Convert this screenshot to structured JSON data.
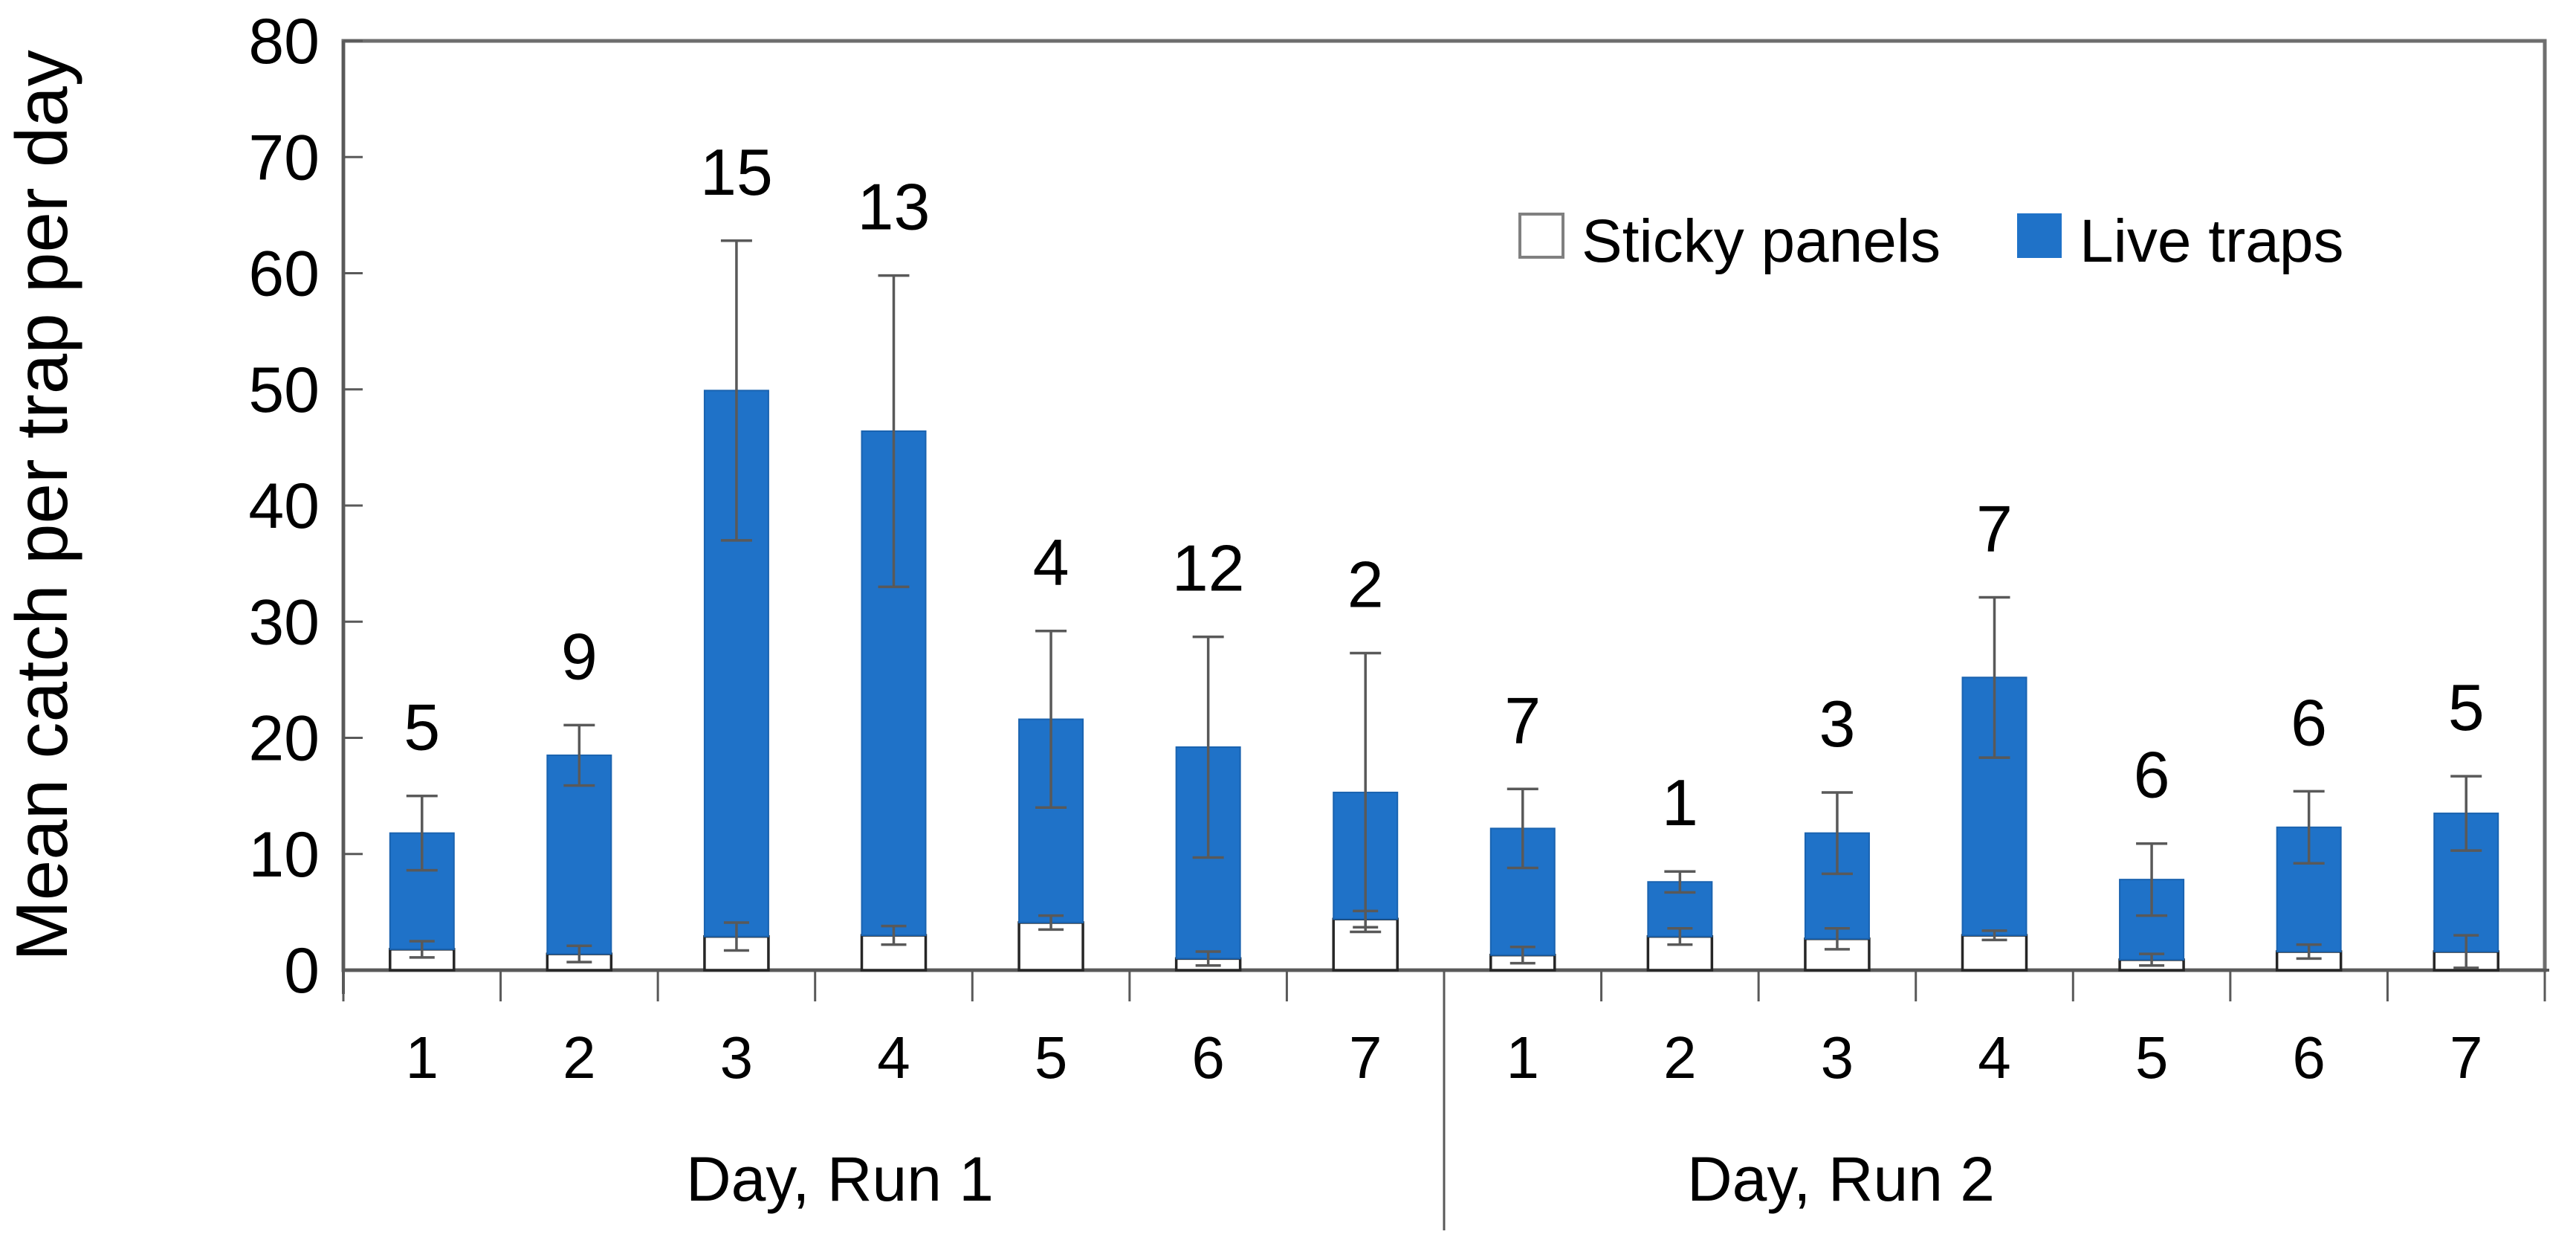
{
  "chart_data": {
    "type": "bar",
    "stacked": true,
    "title": "",
    "xlabel": "",
    "ylabel": "Mean catch per trap per day",
    "ylim": [
      0,
      80
    ],
    "yticks": [
      0,
      10,
      20,
      30,
      40,
      50,
      60,
      70,
      80
    ],
    "grid": false,
    "legend_position": "top-right",
    "legend": {
      "items": [
        {
          "label": "Sticky panels",
          "fill": "#FFFFFF",
          "border": "#808080"
        },
        {
          "label": "Live traps",
          "fill": "#1F72C8",
          "border": "#1F72C8"
        }
      ]
    },
    "colors": {
      "live_fill": "#1F72C8",
      "live_border": "#1A63B0",
      "sticky_fill": "#FFFFFF",
      "sticky_border": "#262626",
      "error_bar": "#595959",
      "axis": "#595959",
      "plot_border": "#6E6E6E",
      "text": "#000000"
    },
    "groups": [
      {
        "label": "Day, Run 1",
        "categories": [
          "1",
          "2",
          "3",
          "4",
          "5",
          "6",
          "7"
        ],
        "series": [
          {
            "name": "Sticky panels",
            "values": [
              1.8,
              1.4,
              2.9,
              3.0,
              4.1,
              1.0,
              4.4
            ]
          },
          {
            "name": "Live traps",
            "values": [
              10.0,
              17.1,
              47.0,
              43.4,
              17.5,
              18.2,
              10.9
            ]
          }
        ],
        "stack_totals": [
          11.8,
          18.5,
          49.9,
          46.4,
          21.6,
          19.2,
          15.3
        ],
        "total_error": [
          3.2,
          2.6,
          12.9,
          13.4,
          7.6,
          9.5,
          12.0
        ],
        "sticky_error": [
          0.7,
          0.7,
          1.2,
          0.8,
          0.6,
          0.6,
          0.7
        ],
        "count_labels": [
          "5",
          "9",
          "15",
          "13",
          "4",
          "12",
          "2"
        ]
      },
      {
        "label": "Day, Run 2",
        "categories": [
          "1",
          "2",
          "3",
          "4",
          "5",
          "6",
          "7"
        ],
        "series": [
          {
            "name": "Sticky panels",
            "values": [
              1.3,
              2.9,
              2.7,
              3.0,
              0.9,
              1.6,
              1.6
            ]
          },
          {
            "name": "Live traps",
            "values": [
              10.9,
              4.7,
              9.1,
              22.2,
              6.9,
              10.7,
              11.9
            ]
          }
        ],
        "stack_totals": [
          12.2,
          7.6,
          11.8,
          25.2,
          7.8,
          12.3,
          13.5
        ],
        "total_error": [
          3.4,
          0.9,
          3.5,
          6.9,
          3.1,
          3.1,
          3.2
        ],
        "sticky_error": [
          0.7,
          0.7,
          0.9,
          0.4,
          0.5,
          0.6,
          1.4
        ],
        "count_labels": [
          "7",
          "1",
          "3",
          "7",
          "6",
          "6",
          "5"
        ]
      }
    ]
  }
}
